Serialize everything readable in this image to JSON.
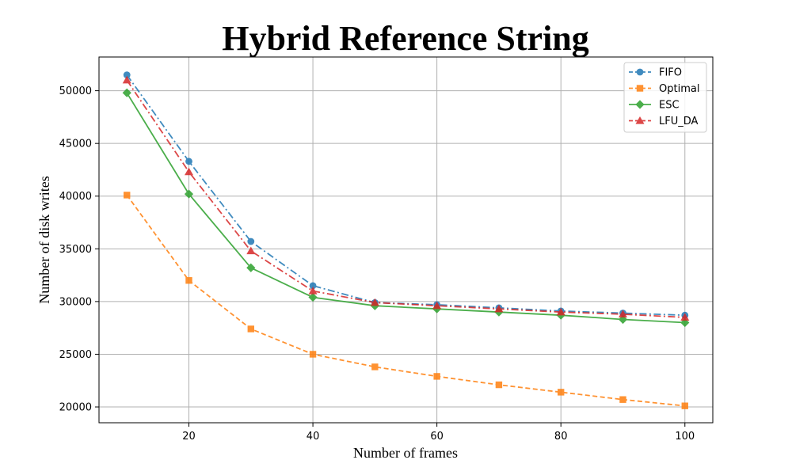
{
  "chart_data": {
    "type": "line",
    "title": "Hybrid Reference String",
    "xlabel": "Number of frames",
    "ylabel": "Number of disk writes",
    "x": [
      10,
      20,
      30,
      40,
      50,
      60,
      70,
      80,
      90,
      100
    ],
    "xlim": [
      5.5,
      104.5
    ],
    "ylim": [
      18500,
      53200
    ],
    "xticks": [
      20,
      40,
      60,
      80,
      100
    ],
    "yticks": [
      20000,
      25000,
      30000,
      35000,
      40000,
      45000,
      50000
    ],
    "grid": true,
    "legend_position": "top-right",
    "series": [
      {
        "name": "FIFO",
        "color": "#1f77b4",
        "marker": "circle",
        "linestyle": "dashdot",
        "values": [
          51500,
          43300,
          35700,
          31500,
          29900,
          29700,
          29400,
          29100,
          28900,
          28700
        ]
      },
      {
        "name": "Optimal",
        "color": "#ff7f0e",
        "marker": "square",
        "linestyle": "dashed",
        "values": [
          40100,
          32000,
          27400,
          25000,
          23800,
          22900,
          22100,
          21400,
          20700,
          20100
        ]
      },
      {
        "name": "ESC",
        "color": "#2ca02c",
        "marker": "diamond",
        "linestyle": "solid",
        "values": [
          49800,
          40200,
          33200,
          30400,
          29600,
          29300,
          29000,
          28700,
          28300,
          28000
        ]
      },
      {
        "name": "LFU_DA",
        "color": "#d62728",
        "marker": "triangle",
        "linestyle": "dashdot",
        "values": [
          51000,
          42300,
          34800,
          31000,
          29900,
          29600,
          29300,
          29000,
          28800,
          28500
        ]
      }
    ]
  }
}
